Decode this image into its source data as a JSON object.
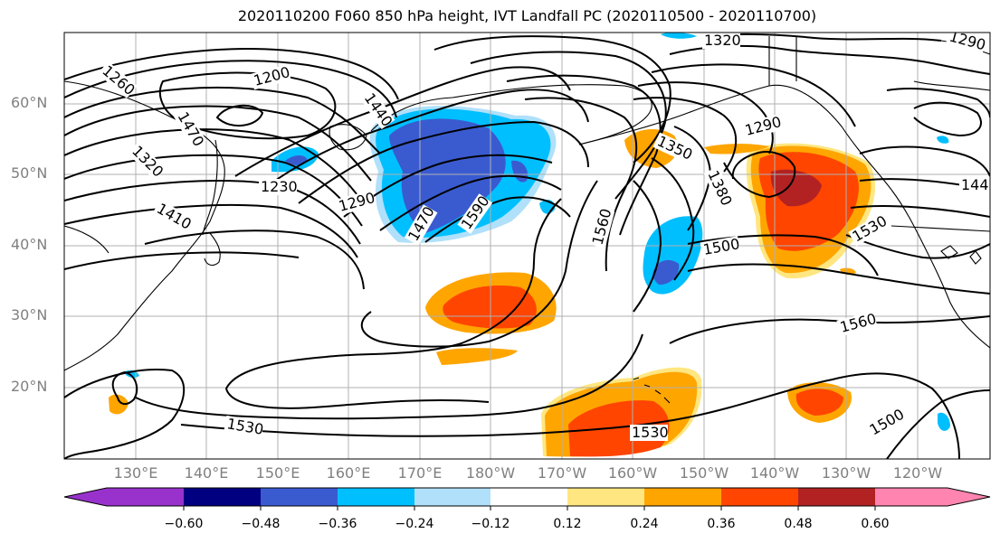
{
  "title": "2020110200 F060 850 hPa height, IVT Landfall PC (2020110500 - 2020110700)",
  "lat_labels": [
    "60°N",
    "50°N",
    "40°N",
    "30°N",
    "20°N"
  ],
  "lon_labels": [
    "130°E",
    "140°E",
    "150°E",
    "160°E",
    "170°E",
    "180°W",
    "170°W",
    "160°W",
    "150°W",
    "140°W",
    "130°W",
    "120°W"
  ],
  "contour_labels": [
    "1200",
    "1230",
    "1260",
    "1290",
    "1320",
    "1350",
    "1380",
    "1410",
    "1440",
    "1470",
    "1500",
    "1530",
    "1560",
    "1590"
  ],
  "colorbar": {
    "ticks": [
      "−0.60",
      "−0.48",
      "−0.36",
      "−0.24",
      "−0.12",
      "0.12",
      "0.24",
      "0.36",
      "0.48",
      "0.60"
    ],
    "colors": {
      "under": "#9932cc",
      "neg_0_60": "#000080",
      "neg_0_48": "#3a5bd0",
      "neg_0_36": "#00bfff",
      "neg_0_24": "#b0e0fa",
      "neutral": "#ffffff",
      "pos_0_12": "#ffe680",
      "pos_0_24": "#ffa500",
      "pos_0_36": "#ff4500",
      "pos_0_48": "#b22222",
      "over": "#ff85b0"
    }
  },
  "colors": {
    "contour": "#000000",
    "grid": "#b0b0b0",
    "axis_label": "#808080"
  }
}
